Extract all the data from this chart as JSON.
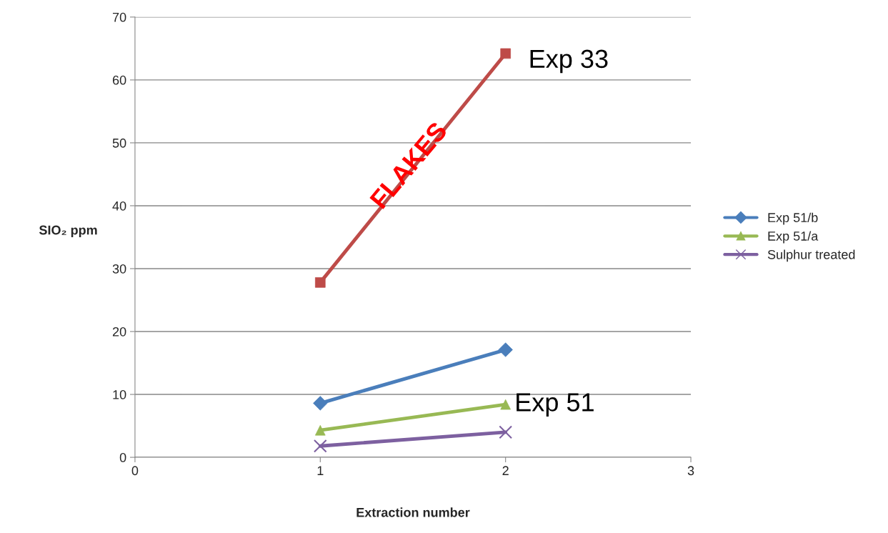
{
  "chart_data": {
    "type": "line",
    "xlabel": "Extraction number",
    "ylabel": "SIO₂ ppm",
    "x": [
      1,
      2
    ],
    "series": [
      {
        "name": "Exp 51/b",
        "color": "#4a7ebb",
        "marker": "diamond",
        "values": [
          8.6,
          17.1
        ]
      },
      {
        "color": "#be4b48",
        "marker": "square",
        "values": [
          27.8,
          64.2
        ]
      },
      {
        "name": "Exp 51/a",
        "color": "#98b954",
        "marker": "triangle",
        "values": [
          4.3,
          8.4
        ]
      },
      {
        "name": "Sulphur treated",
        "color": "#7d60a0",
        "marker": "cross",
        "values": [
          1.8,
          4.0
        ]
      }
    ],
    "xlim": [
      0,
      3
    ],
    "xticks": [
      0,
      1,
      2,
      3
    ],
    "ylim": [
      0,
      70
    ],
    "yticks": [
      0,
      10,
      20,
      30,
      40,
      50,
      60,
      70
    ],
    "grid": "y",
    "legend": "right",
    "line_style": "solid",
    "annotations": [
      "FLAKES",
      "Exp 33",
      "Exp 51"
    ]
  }
}
